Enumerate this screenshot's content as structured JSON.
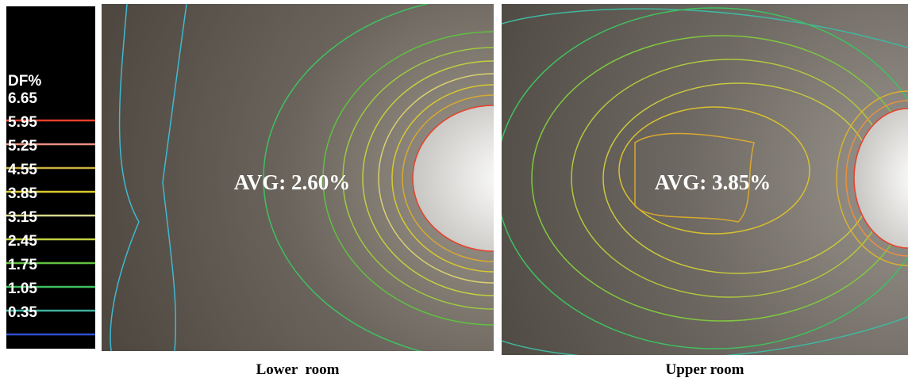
{
  "legend": {
    "title": "DF%",
    "levels": [
      {
        "label": "6.65",
        "color": "#e8402a"
      },
      {
        "label": "5.95",
        "color": "#e89080"
      },
      {
        "label": "5.25",
        "color": "#c8b040"
      },
      {
        "label": "4.55",
        "color": "#d8c830"
      },
      {
        "label": "3.85",
        "color": "#d8d890"
      },
      {
        "label": "3.15",
        "color": "#c0d040"
      },
      {
        "label": "2.45",
        "color": "#60c040"
      },
      {
        "label": "1.75",
        "color": "#40c060"
      },
      {
        "label": "1.05",
        "color": "#40b0a0"
      },
      {
        "label": "0.35",
        "color": "#3050d0"
      }
    ]
  },
  "panels": [
    {
      "avg": "AVG: 2.60%",
      "caption": "Lower  room"
    },
    {
      "avg": "AVG: 3.85%",
      "caption": "Upper room"
    }
  ]
}
